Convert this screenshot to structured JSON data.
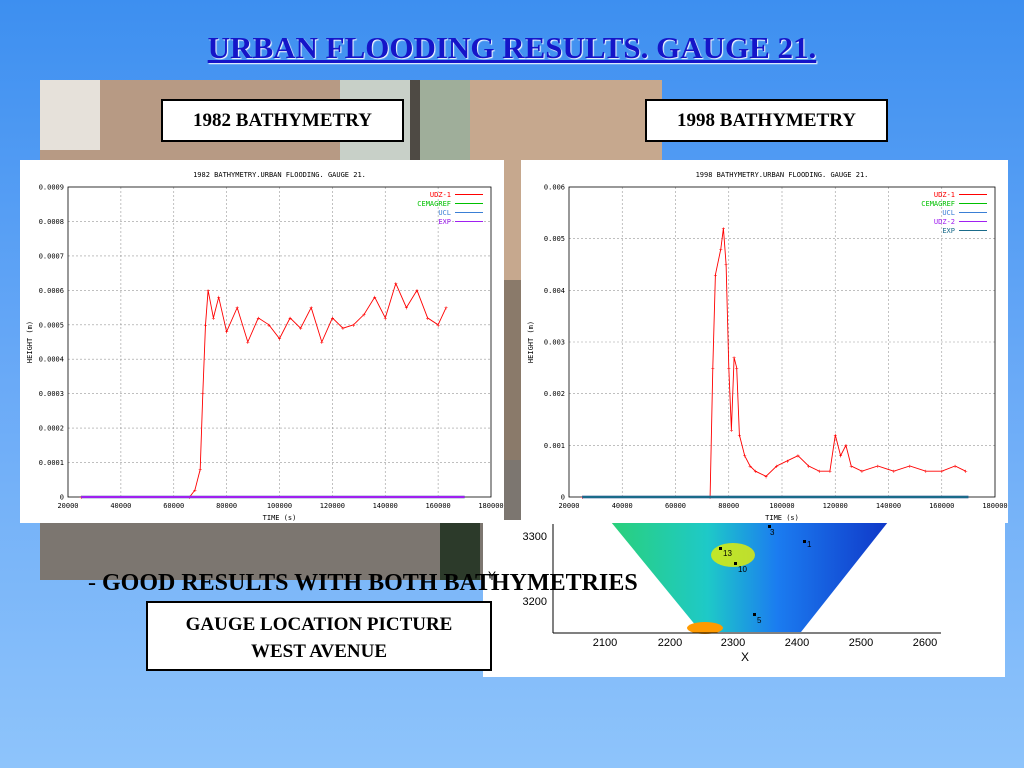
{
  "slide": {
    "title": "URBAN FLOODING RESULTS. GAUGE 21.",
    "label_1982": "1982 BATHYMETRY",
    "label_1998": "1998 BATHYMETRY",
    "bullet_dash": "- ",
    "bullet_text": "GOOD RESULTS WITH BOTH BATHYMETRIES",
    "gauge_label_line1": "GAUGE LOCATION PICTURE",
    "gauge_label_line2": "WEST AVENUE"
  },
  "map": {
    "x_ticks": [
      "2100",
      "2200",
      "2300",
      "2400",
      "2500",
      "2600"
    ],
    "y_ticks": [
      "3300",
      "3200"
    ],
    "xlabel": "X",
    "ylabel": "Y",
    "gauge_labels": [
      "3",
      "1",
      "13",
      "10",
      "5"
    ]
  },
  "chart_data": [
    {
      "type": "line",
      "title": "1982 BATHYMETRY.URBAN FLOODING. GAUGE 21.",
      "xlabel": "TIME (s)",
      "ylabel": "HEIGHT (m)",
      "xlim": [
        20000,
        180000
      ],
      "ylim": [
        0,
        0.0009
      ],
      "x_ticks": [
        "20000",
        "40000",
        "60000",
        "80000",
        "100000",
        "120000",
        "140000",
        "160000",
        "180000"
      ],
      "y_ticks": [
        "0",
        "0.0001",
        "0.0002",
        "0.0003",
        "0.0004",
        "0.0005",
        "0.0006",
        "0.0007",
        "0.0008",
        "0.0009"
      ],
      "grid": true,
      "legend_position": "top-right",
      "series": [
        {
          "name": "UDZ-1",
          "color": "#ff0000",
          "x": [
            25000,
            66000,
            68000,
            70000,
            71000,
            72000,
            73000,
            75000,
            77000,
            80000,
            84000,
            88000,
            92000,
            96000,
            100000,
            104000,
            108000,
            112000,
            116000,
            120000,
            124000,
            128000,
            132000,
            136000,
            140000,
            144000,
            148000,
            152000,
            156000,
            160000,
            163000
          ],
          "y": [
            0,
            0,
            2e-05,
            8e-05,
            0.0003,
            0.0005,
            0.0006,
            0.00052,
            0.00058,
            0.00048,
            0.00055,
            0.00045,
            0.00052,
            0.0005,
            0.00046,
            0.00052,
            0.00049,
            0.00055,
            0.00045,
            0.00052,
            0.00049,
            0.0005,
            0.00053,
            0.00058,
            0.00052,
            0.00062,
            0.00055,
            0.0006,
            0.00052,
            0.0005,
            0.00055
          ]
        },
        {
          "name": "CEMAGREF",
          "color": "#00c000",
          "x": [
            25000,
            170000
          ],
          "y": [
            0,
            0
          ]
        },
        {
          "name": "UCL",
          "color": "#3a7fd5",
          "x": [
            25000,
            170000
          ],
          "y": [
            0,
            0
          ]
        },
        {
          "name": "EXP",
          "color": "#a020f0",
          "x": [
            25000,
            170000
          ],
          "y": [
            0,
            0
          ]
        }
      ]
    },
    {
      "type": "line",
      "title": "1998 BATHYMETRY.URBAN FLOODING. GAUGE 21.",
      "xlabel": "TIME (s)",
      "ylabel": "HEIGHT (m)",
      "xlim": [
        20000,
        180000
      ],
      "ylim": [
        0,
        0.006
      ],
      "x_ticks": [
        "20000",
        "40000",
        "60000",
        "80000",
        "100000",
        "120000",
        "140000",
        "160000",
        "180000"
      ],
      "y_ticks": [
        "0",
        "0.001",
        "0.002",
        "0.003",
        "0.004",
        "0.005",
        "0.006"
      ],
      "grid": true,
      "legend_position": "top-right",
      "series": [
        {
          "name": "UDZ-1",
          "color": "#ff0000",
          "x": [
            25000,
            73000,
            74000,
            75000,
            77000,
            78000,
            79000,
            80000,
            81000,
            82000,
            83000,
            84000,
            86000,
            88000,
            90000,
            94000,
            98000,
            102000,
            106000,
            110000,
            114000,
            118000,
            120000,
            122000,
            124000,
            126000,
            130000,
            136000,
            142000,
            148000,
            154000,
            160000,
            165000,
            169000
          ],
          "y": [
            0,
            0,
            0.0025,
            0.0043,
            0.0048,
            0.0052,
            0.0045,
            0.0025,
            0.0013,
            0.0027,
            0.0025,
            0.0012,
            0.0008,
            0.0006,
            0.0005,
            0.0004,
            0.0006,
            0.0007,
            0.0008,
            0.0006,
            0.0005,
            0.0005,
            0.0012,
            0.0008,
            0.001,
            0.0006,
            0.0005,
            0.0006,
            0.0005,
            0.0006,
            0.0005,
            0.0005,
            0.0006,
            0.0005
          ]
        },
        {
          "name": "CEMAGREF",
          "color": "#00c000",
          "x": [
            25000,
            170000
          ],
          "y": [
            0,
            0
          ]
        },
        {
          "name": "UCL",
          "color": "#3a7fd5",
          "x": [
            25000,
            170000
          ],
          "y": [
            0,
            0
          ]
        },
        {
          "name": "UDZ-2",
          "color": "#a020f0",
          "x": [
            25000,
            170000
          ],
          "y": [
            0,
            0
          ]
        },
        {
          "name": "EXP",
          "color": "#1a6b8a",
          "x": [
            25000,
            170000
          ],
          "y": [
            0,
            0
          ]
        }
      ]
    }
  ]
}
